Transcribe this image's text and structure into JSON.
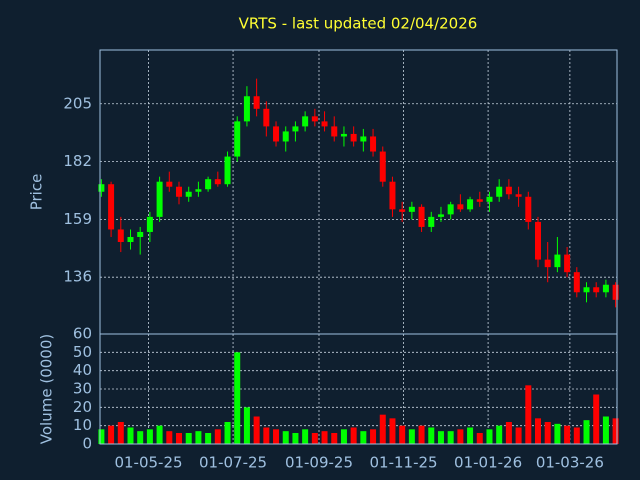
{
  "chart_data": {
    "type": "candlestick",
    "title": "VRTS - last updated 02/04/2026",
    "ylabel": "Price",
    "volume_ylabel": "Volume (0000)",
    "x": [
      "28-03-25",
      "04-04-25",
      "11-04-25",
      "18-04-25",
      "25-04-25",
      "02-05-25",
      "09-05-25",
      "16-05-25",
      "23-05-25",
      "30-05-25",
      "06-06-25",
      "13-06-25",
      "20-06-25",
      "27-06-25",
      "04-07-25",
      "11-07-25",
      "18-07-25",
      "25-07-25",
      "01-08-25",
      "08-08-25",
      "15-08-25",
      "22-08-25",
      "29-08-25",
      "05-09-25",
      "12-09-25",
      "19-09-25",
      "26-09-25",
      "03-10-25",
      "10-10-25",
      "17-10-25",
      "24-10-25",
      "31-10-25",
      "07-11-25",
      "14-11-25",
      "21-11-25",
      "28-11-25",
      "05-12-25",
      "12-12-25",
      "19-12-25",
      "26-12-25",
      "02-01-26",
      "09-01-26",
      "16-01-26",
      "23-01-26",
      "30-01-26",
      "06-02-26",
      "13-02-26",
      "20-02-26",
      "27-02-26",
      "06-03-26",
      "13-03-26",
      "20-03-26",
      "27-03-26",
      "03-04-26"
    ],
    "open": [
      170,
      173,
      155,
      150,
      152,
      154,
      160,
      174,
      172,
      168,
      170,
      171,
      175,
      173,
      184,
      198,
      208,
      203,
      196,
      190,
      194,
      196,
      200,
      198,
      196,
      192,
      193,
      190,
      192,
      186,
      174,
      163,
      162,
      164,
      156,
      160,
      161,
      165,
      163,
      167,
      166,
      168,
      172,
      169,
      168,
      158,
      143,
      140,
      145,
      138,
      130,
      132,
      130,
      133
    ],
    "high": [
      175,
      174,
      160,
      155,
      156,
      162,
      176,
      178,
      174,
      172,
      174,
      176,
      178,
      186,
      200,
      212,
      215,
      206,
      198,
      196,
      198,
      202,
      203,
      202,
      200,
      196,
      196,
      195,
      195,
      188,
      176,
      166,
      166,
      165,
      162,
      164,
      166,
      169,
      168,
      170,
      170,
      175,
      175,
      172,
      170,
      160,
      150,
      152,
      148,
      140,
      134,
      134,
      135,
      134
    ],
    "low": [
      168,
      152,
      146,
      147,
      145,
      150,
      158,
      170,
      165,
      166,
      168,
      170,
      172,
      172,
      182,
      196,
      200,
      192,
      188,
      186,
      190,
      194,
      196,
      194,
      190,
      188,
      188,
      186,
      184,
      172,
      160,
      158,
      159,
      154,
      154,
      158,
      159,
      162,
      162,
      164,
      162,
      166,
      167,
      164,
      155,
      140,
      134,
      138,
      136,
      128,
      126,
      128,
      128,
      124
    ],
    "close": [
      173,
      155,
      150,
      152,
      154,
      160,
      174,
      172,
      168,
      170,
      171,
      175,
      173,
      184,
      198,
      208,
      203,
      196,
      190,
      194,
      196,
      200,
      198,
      196,
      192,
      193,
      190,
      192,
      186,
      174,
      163,
      162,
      164,
      156,
      160,
      161,
      165,
      163,
      167,
      166,
      168,
      172,
      169,
      168,
      158,
      143,
      140,
      145,
      138,
      130,
      132,
      130,
      133,
      127
    ],
    "volume": [
      8,
      10,
      12,
      9,
      7,
      8,
      10,
      7,
      6,
      6,
      7,
      6,
      8,
      12,
      50,
      20,
      15,
      9,
      8,
      7,
      6,
      8,
      6,
      7,
      6,
      8,
      9,
      7,
      8,
      16,
      14,
      10,
      8,
      10,
      9,
      7,
      7,
      8,
      9,
      6,
      8,
      10,
      12,
      9,
      32,
      14,
      12,
      11,
      10,
      9,
      13,
      27,
      15,
      14
    ],
    "xlim": [
      "27-03-25",
      "04-04-26"
    ],
    "xticks": [
      "01-05-25",
      "01-07-25",
      "01-09-25",
      "01-11-25",
      "01-01-26",
      "01-03-26"
    ],
    "ylim": [
      113.4,
      226.4
    ],
    "yticks": [
      136,
      159,
      182,
      205
    ],
    "volume_ylim": [
      0,
      60
    ],
    "volume_yticks": [
      0,
      10,
      20,
      30,
      40,
      50,
      60
    ],
    "grid": true,
    "up_color": "#00ff00",
    "down_color": "#ff0000"
  }
}
